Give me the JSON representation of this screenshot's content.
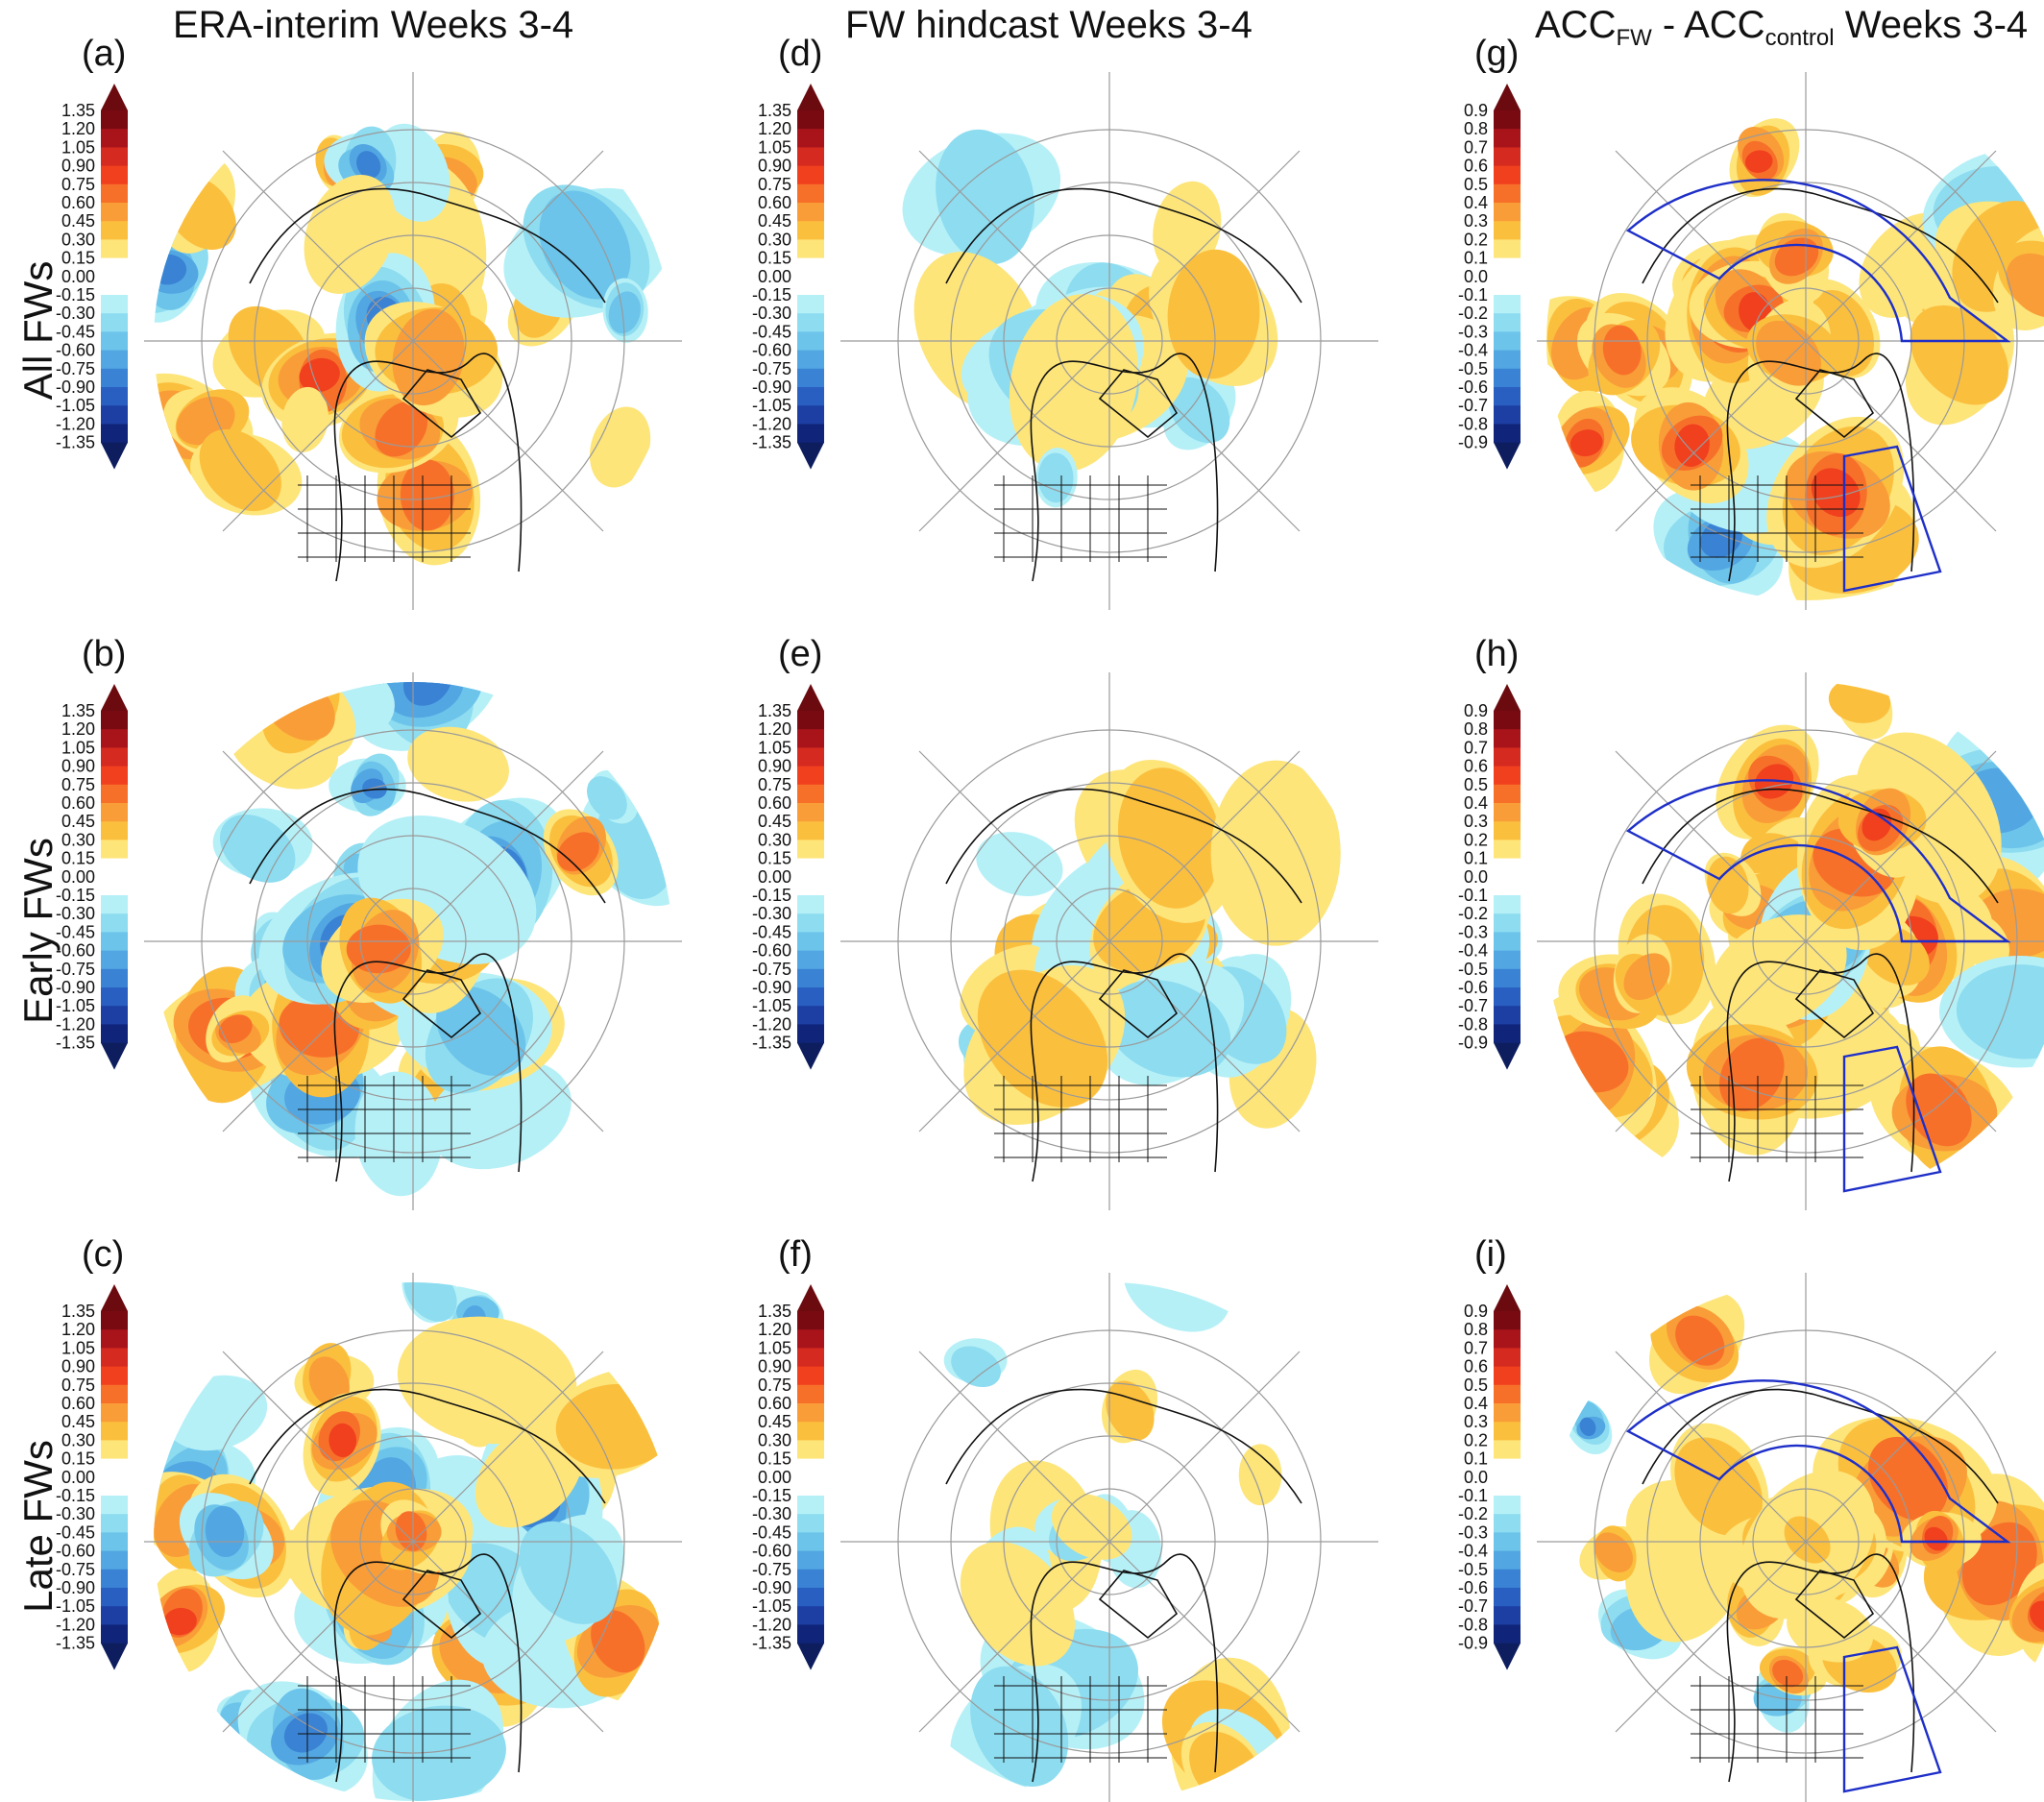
{
  "columns": [
    {
      "title": "ERA-interim Weeks 3-4"
    },
    {
      "title": "FW hindcast Weeks 3-4"
    },
    {
      "title_main": "ACC",
      "sub_fw": "FW",
      "mid": " - ACC",
      "sub_control": "control",
      "suffix": " Weeks 3-4"
    }
  ],
  "rows": [
    {
      "label": "All FWs"
    },
    {
      "label": "Early FWs"
    },
    {
      "label": "Late FWs"
    }
  ],
  "panels": [
    {
      "letter": "(a)",
      "scale": "anom"
    },
    {
      "letter": "(d)",
      "scale": "anom"
    },
    {
      "letter": "(g)",
      "scale": "acc"
    },
    {
      "letter": "(b)",
      "scale": "anom"
    },
    {
      "letter": "(e)",
      "scale": "anom"
    },
    {
      "letter": "(h)",
      "scale": "acc"
    },
    {
      "letter": "(c)",
      "scale": "anom"
    },
    {
      "letter": "(f)",
      "scale": "anom"
    },
    {
      "letter": "(i)",
      "scale": "acc"
    }
  ],
  "colorbars": {
    "anom": [
      "1.35",
      "1.20",
      "1.05",
      "0.90",
      "0.75",
      "0.60",
      "0.45",
      "0.30",
      "0.15",
      "0.00",
      "-0.15",
      "-0.30",
      "-0.45",
      "-0.60",
      "-0.75",
      "-0.90",
      "-1.05",
      "-1.20",
      "-1.35"
    ],
    "acc": [
      "0.9",
      "0.8",
      "0.7",
      "0.6",
      "0.5",
      "0.4",
      "0.3",
      "0.2",
      "0.1",
      "0.0",
      "-0.1",
      "-0.2",
      "-0.3",
      "-0.4",
      "-0.5",
      "-0.6",
      "-0.7",
      "-0.8",
      "-0.9"
    ],
    "colors": [
      "#7a0a12",
      "#a8141a",
      "#d42a1f",
      "#f0401e",
      "#f7702a",
      "#f99d38",
      "#fbbf3e",
      "#fde57a",
      "#ffffff",
      "#ffffff",
      "#b6f0f7",
      "#8ddcf0",
      "#6cc4ea",
      "#52a6e2",
      "#3a82d4",
      "#2a5fc2",
      "#1d3fa3",
      "#10257a"
    ],
    "arrow_top": "#6b0b10",
    "arrow_bottom": "#0d1d5e"
  }
}
